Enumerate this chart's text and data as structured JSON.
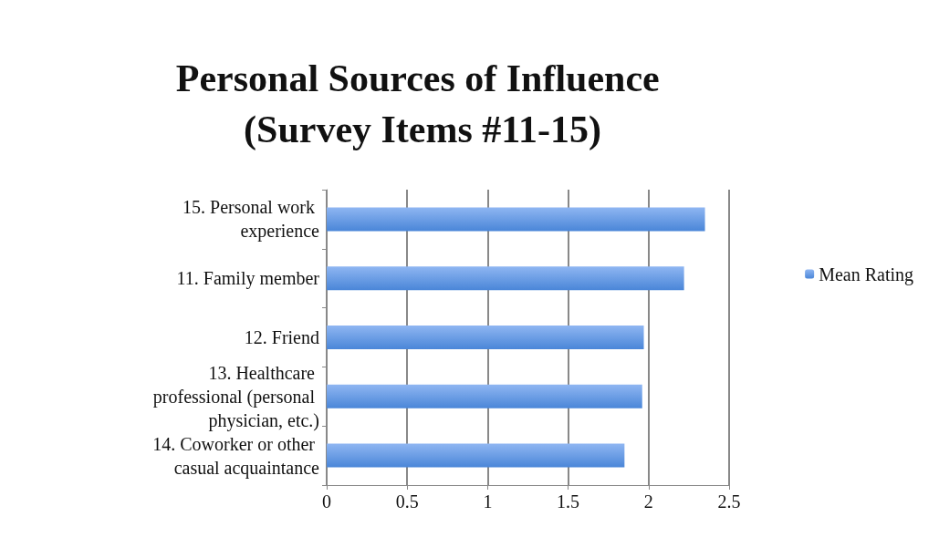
{
  "chart_data": {
    "type": "bar",
    "orientation": "horizontal",
    "title": "Personal Sources of Influence (Survey Items #11-15)",
    "categories": [
      "15. Personal work experience",
      "11. Family member",
      "12. Friend",
      "13. Healthcare professional (personal physician, etc.)",
      "14. Coworker or other casual acquaintance"
    ],
    "series": [
      {
        "name": "Mean Rating",
        "color": "#4a86d8",
        "values": [
          2.35,
          2.22,
          1.97,
          1.96,
          1.85
        ]
      }
    ],
    "xlim": [
      0,
      2.5
    ],
    "xticks": [
      0,
      0.5,
      1,
      1.5,
      2,
      2.5
    ],
    "grid": "x",
    "legend": "right"
  }
}
